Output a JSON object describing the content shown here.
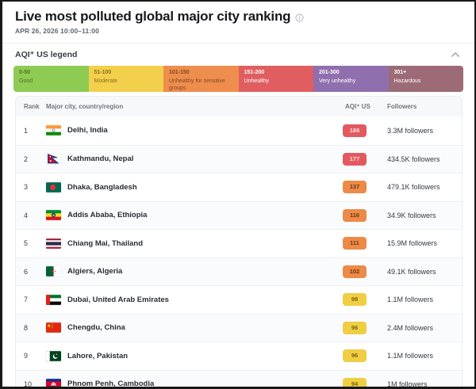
{
  "page": {
    "title": "Live most polluted global major city ranking",
    "subtitle": "APR 26, 2026 10:00–11:00"
  },
  "legend": {
    "title": "AQI⁺ US legend",
    "bands": [
      {
        "range": "0-50",
        "label": "Good",
        "bg": "#8ecb52",
        "fg": "#546d23"
      },
      {
        "range": "51-100",
        "label": "Moderate",
        "bg": "#f3d04b",
        "fg": "#8a6e1d"
      },
      {
        "range": "101-150",
        "label": "Unhealthy for sensitive groups",
        "bg": "#ee8d4d",
        "fg": "#87491b"
      },
      {
        "range": "151-200",
        "label": "Unhealthy",
        "bg": "#e05e60",
        "fg": "#ffffff"
      },
      {
        "range": "201-300",
        "label": "Very unhealthy",
        "bg": "#906fae",
        "fg": "#ffffff"
      },
      {
        "range": "301+",
        "label": "Hazardous",
        "bg": "#9c6b76",
        "fg": "#ffffff"
      }
    ]
  },
  "table": {
    "columns": {
      "rank": "Rank",
      "city": "Major city, country/region",
      "aqi": "AQI⁺ US",
      "followers": "Followers"
    },
    "badge_colors": {
      "red": {
        "bg": "#e2595e",
        "fg": "#ffe2e2"
      },
      "orange": {
        "bg": "#ec8a48",
        "fg": "#6e3a12"
      },
      "yellow": {
        "bg": "#f0ce43",
        "fg": "#7a6318"
      }
    },
    "rows": [
      {
        "rank": "1",
        "city": "Delhi, India",
        "flag": "india",
        "aqi": "186",
        "level": "red",
        "followers": "3.3M followers"
      },
      {
        "rank": "2",
        "city": "Kathmandu, Nepal",
        "flag": "nepal",
        "aqi": "177",
        "level": "red",
        "followers": "434.5K followers"
      },
      {
        "rank": "3",
        "city": "Dhaka, Bangladesh",
        "flag": "bangladesh",
        "aqi": "137",
        "level": "orange",
        "followers": "479.1K followers"
      },
      {
        "rank": "4",
        "city": "Addis Ababa, Ethiopia",
        "flag": "ethiopia",
        "aqi": "116",
        "level": "orange",
        "followers": "34.9K followers"
      },
      {
        "rank": "5",
        "city": "Chiang Mai, Thailand",
        "flag": "thailand",
        "aqi": "111",
        "level": "orange",
        "followers": "15.9M followers"
      },
      {
        "rank": "6",
        "city": "Algiers, Algeria",
        "flag": "algeria",
        "aqi": "102",
        "level": "orange",
        "followers": "49.1K followers"
      },
      {
        "rank": "7",
        "city": "Dubai, United Arab Emirates",
        "flag": "uae",
        "aqi": "98",
        "level": "yellow",
        "followers": "1.1M followers"
      },
      {
        "rank": "8",
        "city": "Chengdu, China",
        "flag": "china",
        "aqi": "96",
        "level": "yellow",
        "followers": "2.4M followers"
      },
      {
        "rank": "9",
        "city": "Lahore, Pakistan",
        "flag": "pakistan",
        "aqi": "96",
        "level": "yellow",
        "followers": "1.1M followers"
      },
      {
        "rank": "10",
        "city": "Phnom Penh, Cambodia",
        "flag": "cambodia",
        "aqi": "94",
        "level": "yellow",
        "followers": "1M followers"
      }
    ]
  }
}
